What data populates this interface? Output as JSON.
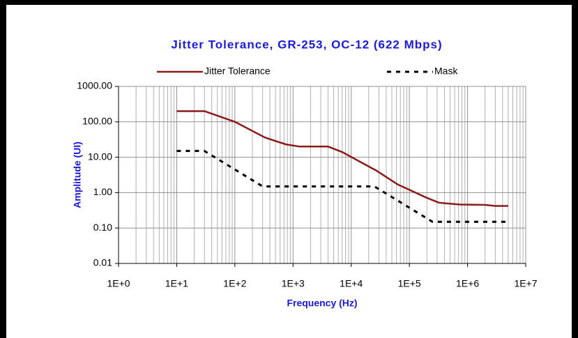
{
  "chart_data": {
    "type": "line",
    "title": "Jitter Tolerance, GR-253, OC-12 (622 Mbps)",
    "xlabel": "Frequency (Hz)",
    "ylabel": "Amplitude (UI)",
    "xscale": "log",
    "yscale": "log",
    "grid": true,
    "minor_grid": true,
    "legend": "top",
    "xlim": [
      1,
      10000000
    ],
    "ylim": [
      0.01,
      1000
    ],
    "xticks": [
      {
        "value": 1,
        "label": "1E+0"
      },
      {
        "value": 10,
        "label": "1E+1"
      },
      {
        "value": 100,
        "label": "1E+2"
      },
      {
        "value": 1000,
        "label": "1E+3"
      },
      {
        "value": 10000,
        "label": "1E+4"
      },
      {
        "value": 100000,
        "label": "1E+5"
      },
      {
        "value": 1000000,
        "label": "1E+6"
      },
      {
        "value": 10000000,
        "label": "1E+7"
      }
    ],
    "yticks": [
      {
        "value": 0.01,
        "label": "0.01"
      },
      {
        "value": 0.1,
        "label": "0.10"
      },
      {
        "value": 1,
        "label": "1.00"
      },
      {
        "value": 10,
        "label": "10.00"
      },
      {
        "value": 100,
        "label": "100.00"
      },
      {
        "value": 1000,
        "label": "1000.00"
      }
    ],
    "series": [
      {
        "name": "Jitter Tolerance",
        "color": "#8b1a1a",
        "dash": false,
        "x": [
          10,
          30,
          100,
          330,
          760,
          1300,
          4000,
          7000,
          27000,
          63000,
          190000,
          320000,
          750000,
          2000000,
          3000000,
          5000000
        ],
        "values": [
          200,
          200,
          100,
          36,
          23,
          20,
          20,
          14,
          4.2,
          1.7,
          0.74,
          0.52,
          0.46,
          0.45,
          0.42,
          0.42
        ]
      },
      {
        "name": "Mask",
        "color": "#000000",
        "dash": true,
        "x": [
          10,
          30,
          300,
          25000,
          250000,
          5000000
        ],
        "values": [
          15,
          15,
          1.5,
          1.5,
          0.15,
          0.15
        ]
      }
    ]
  }
}
